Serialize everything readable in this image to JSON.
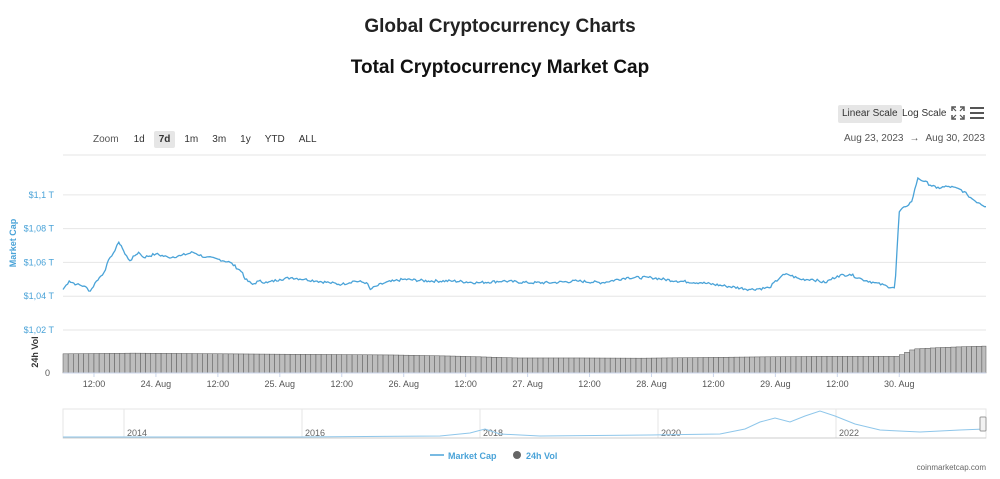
{
  "page_title": "Global Cryptocurrency Charts",
  "chart_title": "Total Cryptocurrency Market Cap",
  "scale_buttons": {
    "linear": "Linear Scale",
    "log": "Log Scale",
    "active": "linear"
  },
  "zoom": {
    "label": "Zoom",
    "options": [
      "1d",
      "7d",
      "1m",
      "3m",
      "1y",
      "YTD",
      "ALL"
    ],
    "active": "7d"
  },
  "date_range": {
    "from": "Aug 23, 2023",
    "arrow": "→",
    "to": "Aug 30, 2023"
  },
  "credit": "coinmarketcap.com",
  "colors": {
    "market_cap": "#4aa3d8",
    "volume_fill": "#bdbdbd",
    "volume_stroke": "#555555",
    "navigator": "#8ec6ea"
  },
  "chart_data": {
    "type": "line",
    "ylabel": "Market Cap",
    "ylabel2": "24h Vol",
    "y_ticks": [
      "$1,02 T",
      "$1,04 T",
      "$1,06 T",
      "$1,08 T",
      "$1,1 T"
    ],
    "y_tick_values": [
      1.02,
      1.04,
      1.06,
      1.08,
      1.1
    ],
    "vol_ticks": [
      "0"
    ],
    "x_ticks": [
      "12:00",
      "24. Aug",
      "12:00",
      "25. Aug",
      "12:00",
      "26. Aug",
      "12:00",
      "27. Aug",
      "12:00",
      "28. Aug",
      "12:00",
      "29. Aug",
      "12:00",
      "30. Aug"
    ],
    "x_range_days": [
      23.25,
      30.7
    ],
    "series": [
      {
        "name": "Market Cap",
        "unit": "trillion USD",
        "x": [
          23.25,
          23.3,
          23.36,
          23.42,
          23.47,
          23.52,
          23.58,
          23.63,
          23.67,
          23.7,
          23.72,
          23.75,
          23.79,
          23.83,
          23.86,
          23.9,
          24.0,
          24.1,
          24.2,
          24.3,
          24.4,
          24.5,
          24.6,
          24.7,
          24.72,
          24.78,
          24.83,
          24.9,
          25.0,
          25.1,
          25.2,
          25.3,
          25.4,
          25.5,
          25.6,
          25.7,
          25.73,
          25.78,
          25.85,
          25.92,
          26.0,
          26.2,
          26.4,
          26.6,
          26.8,
          27.0,
          27.2,
          27.4,
          27.6,
          27.8,
          28.0,
          28.2,
          28.4,
          28.6,
          28.8,
          28.95,
          29.05,
          29.1,
          29.2,
          29.3,
          29.4,
          29.5,
          29.6,
          29.7,
          29.8,
          29.9,
          29.96,
          29.97,
          30.0,
          30.05,
          30.1,
          30.15,
          30.2,
          30.3,
          30.4,
          30.5,
          30.55,
          30.6,
          30.65,
          30.7
        ],
        "values": [
          1.044,
          1.049,
          1.047,
          1.046,
          1.043,
          1.049,
          1.054,
          1.063,
          1.067,
          1.072,
          1.07,
          1.065,
          1.061,
          1.064,
          1.066,
          1.063,
          1.065,
          1.063,
          1.064,
          1.066,
          1.063,
          1.062,
          1.06,
          1.054,
          1.05,
          1.047,
          1.049,
          1.048,
          1.05,
          1.051,
          1.05,
          1.049,
          1.048,
          1.047,
          1.049,
          1.048,
          1.044,
          1.046,
          1.048,
          1.049,
          1.05,
          1.049,
          1.049,
          1.048,
          1.049,
          1.048,
          1.048,
          1.049,
          1.048,
          1.051,
          1.051,
          1.049,
          1.048,
          1.046,
          1.044,
          1.045,
          1.052,
          1.053,
          1.05,
          1.05,
          1.048,
          1.052,
          1.053,
          1.05,
          1.048,
          1.046,
          1.045,
          1.052,
          1.09,
          1.093,
          1.096,
          1.11,
          1.108,
          1.104,
          1.105,
          1.103,
          1.1,
          1.097,
          1.095,
          1.093
        ]
      },
      {
        "name": "24h Vol",
        "unit": "relative",
        "x": [
          23.25,
          23.8,
          24.3,
          24.8,
          25.4,
          25.9,
          26.4,
          26.9,
          27.4,
          27.9,
          28.4,
          28.9,
          29.4,
          29.9,
          29.96,
          30.0,
          30.1,
          30.3,
          30.5,
          30.7
        ],
        "values": [
          0.66,
          0.69,
          0.67,
          0.65,
          0.63,
          0.61,
          0.56,
          0.48,
          0.48,
          0.47,
          0.5,
          0.53,
          0.55,
          0.55,
          0.55,
          0.62,
          0.87,
          0.93,
          0.97,
          1.0
        ]
      }
    ],
    "navigator": {
      "x_ticks": [
        "2014",
        "2016",
        "2018",
        "2020",
        "2022"
      ]
    },
    "legend": [
      "Market Cap",
      "24h Vol"
    ],
    "legend_position": "bottom-center"
  }
}
